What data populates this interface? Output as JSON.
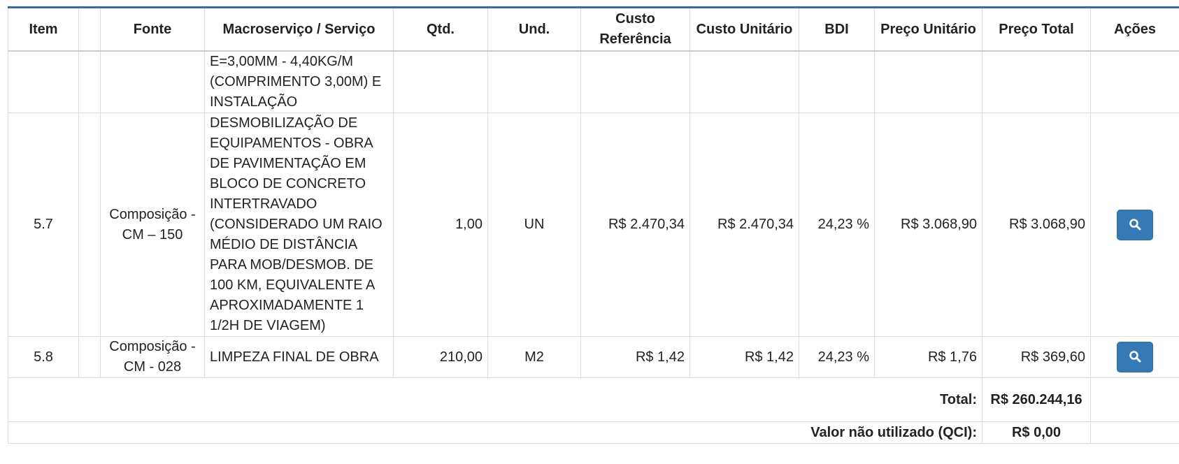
{
  "table": {
    "columns": [
      "Item",
      null,
      "Fonte",
      "Macroserviço / Serviço",
      "Qtd.",
      "Und.",
      "Custo Referência",
      "Custo Unitário",
      "BDI",
      "Preço Unitário",
      "Preço Total",
      "Ações"
    ],
    "rows": [
      [
        null,
        null,
        null,
        "E=3,00MM - 4,40KG/M (COMPRIMENTO 3,00M) E INSTALAÇÃO",
        null,
        null,
        null,
        null,
        null,
        null,
        null,
        null
      ],
      [
        "5.7",
        null,
        "Composição - CM – 150",
        "DESMOBILIZAÇÃO DE EQUIPAMENTOS - OBRA DE PAVIMENTAÇÃO EM BLOCO DE CONCRETO INTERTRAVADO (CONSIDERADO UM RAIO MÉDIO DE DISTÂNCIA PARA MOB/DESMOB. DE 100 KM, EQUIVALENTE A APROXIMADAMENTE 1 1/2H DE VIAGEM)",
        "1,00",
        "UN",
        "R$ 2.470,34",
        "R$ 2.470,34",
        "24,23 %",
        "R$ 3.068,90",
        "R$ 3.068,90",
        null
      ],
      [
        "5.8",
        null,
        "Composição - CM - 028",
        "LIMPEZA FINAL DE OBRA",
        "210,00",
        "M2",
        "R$ 1,42",
        "R$ 1,42",
        "24,23 %",
        "R$ 1,76",
        "R$ 369,60",
        null
      ]
    ],
    "footer": [
      {
        "label": "Total:",
        "value": "R$ 260.244,16"
      },
      {
        "label": "Valor não utilizado (QCI):",
        "value": "R$ 0,00"
      }
    ]
  }
}
